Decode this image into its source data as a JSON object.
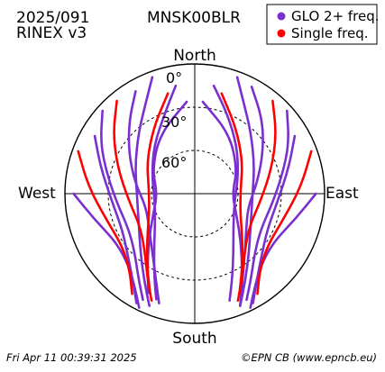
{
  "header": {
    "date_code": "2025/091",
    "format": "RINEX v3",
    "station": "MNSK00BLR"
  },
  "legend": [
    {
      "label": "GLO 2+ freq.",
      "color": "#7a2fcf"
    },
    {
      "label": "Single freq.",
      "color": "#ff0000"
    }
  ],
  "footer": {
    "timestamp": "Fri Apr 11 00:39:31 2025",
    "credit": "©EPN CB (www.epncb.eu)"
  },
  "chart_data": {
    "type": "polar-skyplot",
    "directions": {
      "north": "North",
      "south": "South",
      "west": "West",
      "east": "East"
    },
    "elevation_rings": [
      {
        "elevation_deg": 0,
        "label": "0°"
      },
      {
        "elevation_deg": 30,
        "label": "30°"
      },
      {
        "elevation_deg": 60,
        "label": "60°"
      }
    ],
    "elevation_range_deg": [
      0,
      90
    ],
    "azimuth_range_deg": [
      0,
      360
    ],
    "grid": true,
    "legend_placement": "top-right",
    "series": [
      {
        "name": "GLO 2+ freq.",
        "color": "#7a2fcf",
        "tracks": [
          [
            [
              330,
              8
            ],
            [
              318,
              22
            ],
            [
              302,
              36
            ],
            [
              280,
              48
            ],
            [
              255,
              55
            ],
            [
              232,
              50
            ],
            [
              214,
              38
            ],
            [
              204,
              24
            ],
            [
              198,
              10
            ]
          ],
          [
            [
              28,
              6
            ],
            [
              42,
              20
            ],
            [
              58,
              34
            ],
            [
              80,
              46
            ],
            [
              104,
              52
            ],
            [
              126,
              46
            ],
            [
              142,
              34
            ],
            [
              152,
              20
            ],
            [
              158,
              6
            ]
          ],
          [
            [
              350,
              14
            ],
            [
              340,
              30
            ],
            [
              320,
              46
            ],
            [
              292,
              58
            ],
            [
              262,
              62
            ],
            [
              234,
              56
            ],
            [
              216,
              42
            ],
            [
              206,
              26
            ],
            [
              200,
              12
            ]
          ],
          [
            [
              10,
              14
            ],
            [
              22,
              30
            ],
            [
              42,
              46
            ],
            [
              70,
              58
            ],
            [
              100,
              62
            ],
            [
              128,
              56
            ],
            [
              146,
              42
            ],
            [
              156,
              26
            ],
            [
              162,
              12
            ]
          ],
          [
            [
              312,
              4
            ],
            [
              298,
              16
            ],
            [
              282,
              28
            ],
            [
              262,
              36
            ],
            [
              242,
              38
            ],
            [
              226,
              32
            ],
            [
              214,
              20
            ],
            [
              206,
              8
            ]
          ],
          [
            [
              48,
              4
            ],
            [
              62,
              16
            ],
            [
              78,
              28
            ],
            [
              98,
              36
            ],
            [
              118,
              38
            ],
            [
              134,
              32
            ],
            [
              146,
              20
            ],
            [
              154,
              8
            ]
          ],
          [
            [
              340,
              4
            ],
            [
              332,
              18
            ],
            [
              318,
              32
            ],
            [
              296,
              44
            ],
            [
              268,
              50
            ],
            [
              242,
              46
            ],
            [
              222,
              34
            ],
            [
              210,
              20
            ],
            [
              202,
              6
            ]
          ],
          [
            [
              20,
              4
            ],
            [
              28,
              18
            ],
            [
              42,
              32
            ],
            [
              64,
              44
            ],
            [
              92,
              50
            ],
            [
              118,
              46
            ],
            [
              138,
              34
            ],
            [
              150,
              20
            ],
            [
              158,
              6
            ]
          ],
          [
            [
              300,
              10
            ],
            [
              286,
              22
            ],
            [
              266,
              32
            ],
            [
              244,
              34
            ],
            [
              226,
              26
            ],
            [
              214,
              14
            ],
            [
              208,
              4
            ]
          ],
          [
            [
              60,
              10
            ],
            [
              74,
              22
            ],
            [
              94,
              32
            ],
            [
              116,
              34
            ],
            [
              134,
              26
            ],
            [
              146,
              14
            ],
            [
              152,
              4
            ]
          ],
          [
            [
              355,
              26
            ],
            [
              330,
              42
            ],
            [
              300,
              56
            ],
            [
              270,
              64
            ],
            [
              244,
              58
            ],
            [
              224,
              44
            ],
            [
              212,
              28
            ],
            [
              205,
              14
            ]
          ],
          [
            [
              5,
              26
            ],
            [
              30,
              42
            ],
            [
              60,
              56
            ],
            [
              90,
              64
            ],
            [
              116,
              58
            ],
            [
              136,
              44
            ],
            [
              148,
              28
            ],
            [
              155,
              14
            ]
          ],
          [
            [
              270,
              6
            ],
            [
              256,
              18
            ],
            [
              238,
              26
            ],
            [
              222,
              22
            ],
            [
              212,
              12
            ],
            [
              206,
              2
            ]
          ],
          [
            [
              90,
              6
            ],
            [
              104,
              18
            ],
            [
              122,
              26
            ],
            [
              138,
              22
            ],
            [
              148,
              12
            ],
            [
              154,
              2
            ]
          ]
        ]
      },
      {
        "name": "Single freq.",
        "color": "#ff0000",
        "tracks": [
          [
            [
              320,
              6
            ],
            [
              306,
              20
            ],
            [
              288,
              34
            ],
            [
              264,
              44
            ],
            [
              240,
              46
            ],
            [
              222,
              38
            ],
            [
              210,
              24
            ],
            [
              202,
              10
            ]
          ],
          [
            [
              40,
              6
            ],
            [
              54,
              20
            ],
            [
              72,
              34
            ],
            [
              96,
              44
            ],
            [
              120,
              46
            ],
            [
              138,
              38
            ],
            [
              150,
              24
            ],
            [
              158,
              10
            ]
          ],
          [
            [
              345,
              18
            ],
            [
              328,
              36
            ],
            [
              304,
              50
            ],
            [
              276,
              58
            ],
            [
              248,
              56
            ],
            [
              226,
              44
            ],
            [
              212,
              28
            ],
            [
              204,
              14
            ]
          ],
          [
            [
              15,
              18
            ],
            [
              32,
              36
            ],
            [
              56,
              50
            ],
            [
              84,
              58
            ],
            [
              112,
              56
            ],
            [
              134,
              44
            ],
            [
              148,
              28
            ],
            [
              156,
              14
            ]
          ],
          [
            [
              290,
              4
            ],
            [
              274,
              16
            ],
            [
              254,
              26
            ],
            [
              234,
              28
            ],
            [
              220,
              20
            ],
            [
              212,
              8
            ]
          ],
          [
            [
              70,
              4
            ],
            [
              86,
              16
            ],
            [
              106,
              26
            ],
            [
              126,
              28
            ],
            [
              140,
              20
            ],
            [
              148,
              8
            ]
          ]
        ]
      }
    ]
  }
}
